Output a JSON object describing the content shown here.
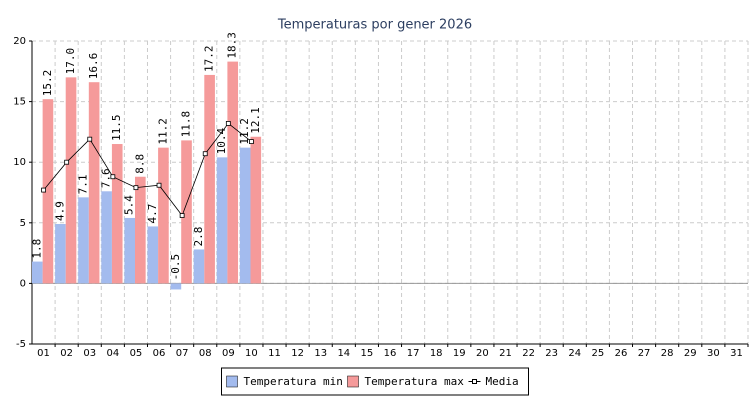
{
  "chart_data": {
    "type": "bar",
    "title": "Temperaturas por gener 2026",
    "categories": [
      "01",
      "02",
      "03",
      "04",
      "05",
      "06",
      "07",
      "08",
      "09",
      "10",
      "11",
      "12",
      "13",
      "14",
      "15",
      "16",
      "17",
      "18",
      "19",
      "20",
      "21",
      "22",
      "23",
      "24",
      "25",
      "26",
      "27",
      "28",
      "29",
      "30",
      "31"
    ],
    "series": [
      {
        "name": "Temperatura min",
        "color": "#a3bbee",
        "type": "bar",
        "values": [
          1.8,
          4.9,
          7.1,
          7.6,
          5.4,
          4.7,
          -0.5,
          2.8,
          10.4,
          11.2,
          null,
          null,
          null,
          null,
          null,
          null,
          null,
          null,
          null,
          null,
          null,
          null,
          null,
          null,
          null,
          null,
          null,
          null,
          null,
          null,
          null
        ],
        "value_labels": [
          "1.8",
          "4.9",
          "7.1",
          "7.6",
          "5.4",
          "4.7",
          "-0.5",
          "2.8",
          "10.4",
          "11.2",
          null,
          null,
          null,
          null,
          null,
          null,
          null,
          null,
          null,
          null,
          null,
          null,
          null,
          null,
          null,
          null,
          null,
          null,
          null,
          null,
          null
        ]
      },
      {
        "name": "Temperatura max",
        "color": "#f59a9a",
        "type": "bar",
        "values": [
          15.2,
          17.0,
          16.6,
          11.5,
          8.8,
          11.2,
          11.8,
          17.2,
          18.3,
          12.1,
          null,
          null,
          null,
          null,
          null,
          null,
          null,
          null,
          null,
          null,
          null,
          null,
          null,
          null,
          null,
          null,
          null,
          null,
          null,
          null,
          null
        ],
        "value_labels": [
          "15.2",
          "17.0",
          "16.6",
          "11.5",
          "8.8",
          "11.2",
          "11.8",
          "17.2",
          "18.3",
          "12.1",
          null,
          null,
          null,
          null,
          null,
          null,
          null,
          null,
          null,
          null,
          null,
          null,
          null,
          null,
          null,
          null,
          null,
          null,
          null,
          null,
          null
        ]
      },
      {
        "name": "Media",
        "color": "#000000",
        "type": "line",
        "values": [
          7.7,
          10.0,
          11.9,
          8.8,
          7.9,
          8.1,
          5.6,
          10.7,
          13.2,
          11.7,
          null,
          null,
          null,
          null,
          null,
          null,
          null,
          null,
          null,
          null,
          null,
          null,
          null,
          null,
          null,
          null,
          null,
          null,
          null,
          null,
          null
        ]
      }
    ],
    "ylim": [
      -5,
      20
    ],
    "yticks": [
      -5,
      0,
      5,
      10,
      15,
      20
    ],
    "grid": true,
    "legend": "bottom"
  }
}
